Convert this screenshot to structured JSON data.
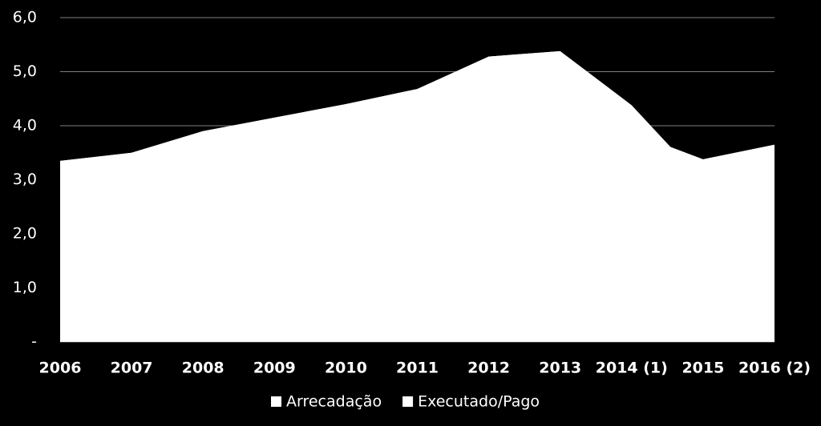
{
  "chart_data": {
    "type": "area",
    "categories": [
      "2006",
      "2007",
      "2008",
      "2009",
      "2010",
      "2011",
      "2012",
      "2013",
      "2014 (1)",
      "2015",
      "2016 (2)"
    ],
    "series": [
      {
        "name": "Arrecadação",
        "color": "#ffffff",
        "values": [
          3.35,
          3.5,
          3.9,
          4.15,
          4.4,
          4.68,
          5.28,
          5.38,
          4.38,
          2.96,
          3.6
        ]
      },
      {
        "name": "Executado/Pago",
        "color": "#ffffff",
        "values": [
          3.35,
          3.5,
          3.9,
          4.15,
          4.4,
          4.68,
          5.28,
          5.38,
          3.88,
          3.38,
          3.65
        ]
      }
    ],
    "ylim": [
      0,
      6
    ],
    "yticks": [
      {
        "value": 0,
        "label": "-"
      },
      {
        "value": 1,
        "label": "1,0"
      },
      {
        "value": 2,
        "label": "2,0"
      },
      {
        "value": 3,
        "label": "3,0"
      },
      {
        "value": 4,
        "label": "4,0"
      },
      {
        "value": 5,
        "label": "5,0"
      },
      {
        "value": 6,
        "label": "6,0"
      }
    ],
    "grid": true,
    "legend": "bottom"
  }
}
